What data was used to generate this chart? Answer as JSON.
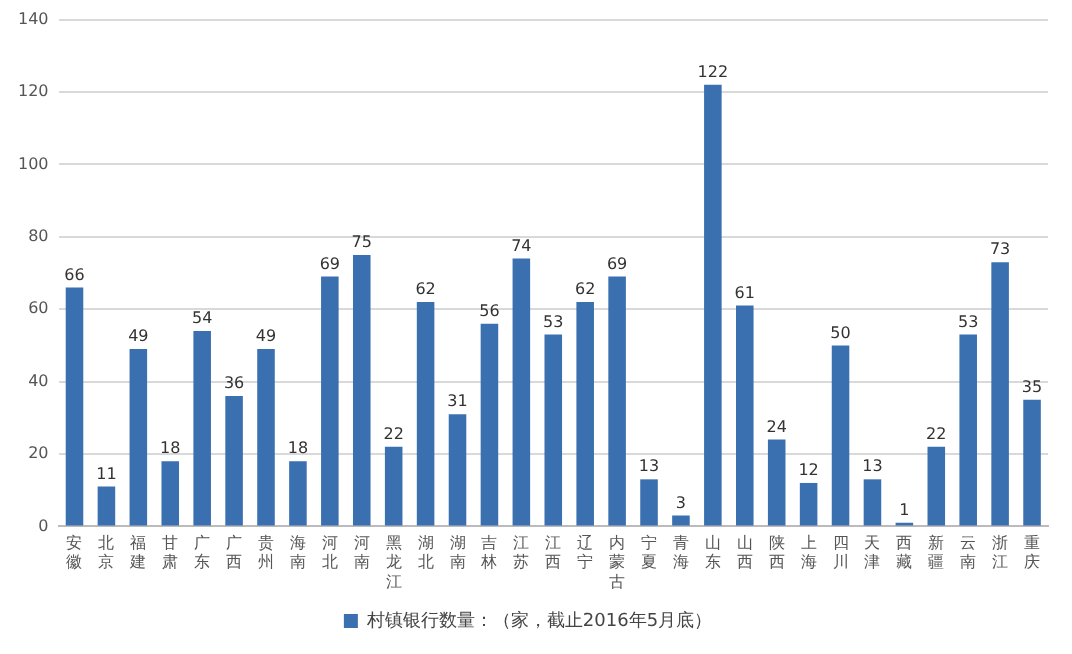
{
  "chart_data": {
    "type": "bar",
    "categories": [
      "安徽",
      "北京",
      "福建",
      "甘肃",
      "广东",
      "广西",
      "贵州",
      "海南",
      "河北",
      "河南",
      "黑龙江",
      "湖北",
      "湖南",
      "吉林",
      "江苏",
      "江西",
      "辽宁",
      "内蒙古",
      "宁夏",
      "青海",
      "山东",
      "山西",
      "陕西",
      "上海",
      "四川",
      "天津",
      "西藏",
      "新疆",
      "云南",
      "浙江",
      "重庆"
    ],
    "series": [
      {
        "name": "村镇银行数量：（家，截止2016年5月底）",
        "color": "#3a6fb0",
        "values": [
          66,
          11,
          49,
          18,
          54,
          36,
          49,
          18,
          69,
          75,
          22,
          62,
          31,
          56,
          74,
          53,
          62,
          69,
          13,
          3,
          122,
          61,
          24,
          12,
          50,
          13,
          1,
          22,
          53,
          73,
          35
        ]
      }
    ],
    "ylim": [
      0,
      140
    ],
    "yticks": [
      0,
      20,
      40,
      60,
      80,
      100,
      120,
      140
    ],
    "grid": "y",
    "legend": "bottom",
    "data_labels": true
  }
}
